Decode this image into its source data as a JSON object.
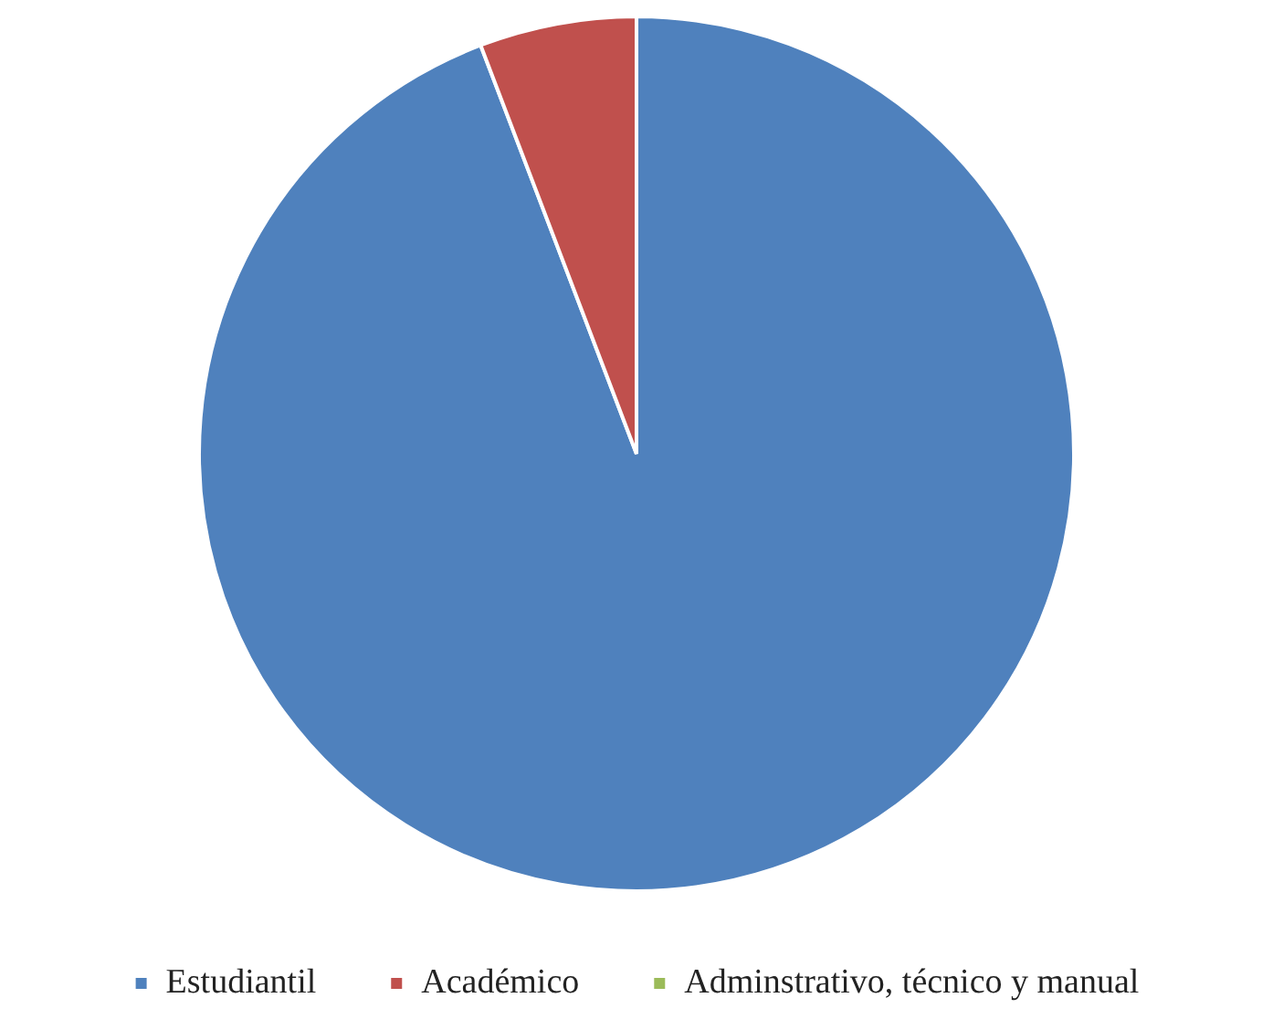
{
  "chart_data": {
    "type": "pie",
    "categories": [
      "Estudiantil",
      "Académico",
      "Adminstrativo, técnico y manual"
    ],
    "values": [
      94.2,
      5.8,
      0
    ],
    "colors": [
      "#4f81bd",
      "#c0504d",
      "#9bbb59"
    ],
    "legend": "bottom"
  }
}
